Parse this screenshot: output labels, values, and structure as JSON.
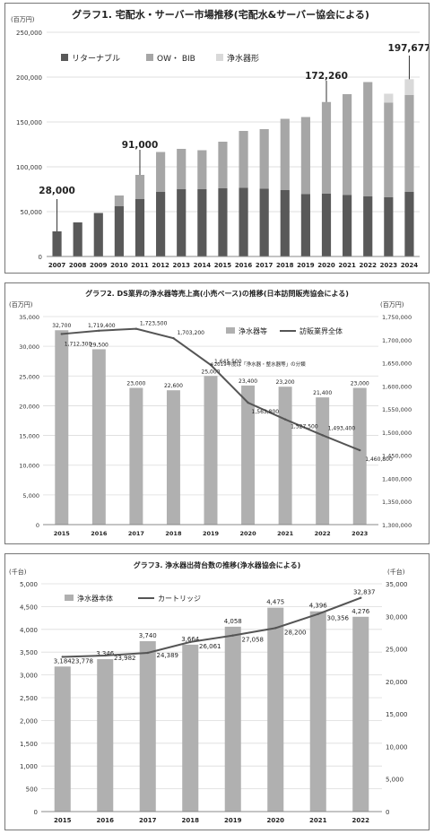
{
  "chart_data": [
    {
      "type": "bar",
      "title": "グラフ1. 宅配水・サーバー市場推移(宅配水&サーバー協会による)",
      "ylabel_unit": "(百万円)",
      "categories": [
        "2007",
        "2008",
        "2009",
        "2010",
        "2011",
        "2012",
        "2013",
        "2014",
        "2015",
        "2016",
        "2017",
        "2018",
        "2019",
        "2020",
        "2021",
        "2022",
        "2023",
        "2024"
      ],
      "ylim": [
        0,
        250000
      ],
      "yticks": [
        "0",
        "50,000",
        "100,000",
        "150,000",
        "200,000",
        "250,000"
      ],
      "stacked": true,
      "series": [
        {
          "name": "リターナブル",
          "color": "#595959",
          "values": [
            28000,
            38000,
            48500,
            56000,
            64000,
            72000,
            75000,
            75000,
            76000,
            76500,
            75500,
            74000,
            69500,
            70000,
            68500,
            67000,
            66000,
            72000
          ]
        },
        {
          "name": "OW・ BIB",
          "color": "#a6a6a6",
          "values": [
            0,
            0,
            0,
            12000,
            27000,
            44500,
            45000,
            43500,
            52000,
            63500,
            66500,
            79500,
            86000,
            102260,
            112500,
            127500,
            105500,
            108000
          ]
        },
        {
          "name": "浄水器形",
          "color": "#d9d9d9",
          "values": [
            0,
            0,
            0,
            0,
            0,
            0,
            0,
            0,
            0,
            0,
            0,
            0,
            0,
            0,
            0,
            0,
            10000,
            17677
          ]
        }
      ],
      "annotations": [
        {
          "category": "2007",
          "label": "28,000"
        },
        {
          "category": "2011",
          "label": "91,000"
        },
        {
          "category": "2020",
          "label": "172,260"
        },
        {
          "category": "2024",
          "label": "197,677"
        }
      ],
      "legend": "top-left"
    },
    {
      "type": "bar+line",
      "title": "グラフ2. DS業界の浄水器等売上高(小売ベース)の推移(日本訪問販売協会による)",
      "ylabel_left_unit": "(百万円)",
      "ylabel_right_unit": "(百万円)",
      "categories": [
        "2015",
        "2016",
        "2017",
        "2018",
        "2019",
        "2020",
        "2021",
        "2022",
        "2023"
      ],
      "ylim_left": [
        0,
        35000
      ],
      "yticks_left": [
        "0",
        "5,000",
        "10,000",
        "15,000",
        "20,000",
        "25,000",
        "30,000",
        "35,000"
      ],
      "ylim_right": [
        1300000,
        1750000
      ],
      "yticks_right": [
        "1,300,000",
        "1,350,000",
        "1,400,000",
        "1,450,000",
        "1,500,000",
        "1,550,000",
        "1,600,000",
        "1,650,000",
        "1,700,000",
        "1,750,000"
      ],
      "series": [
        {
          "name": "浄水器等",
          "axis": "left",
          "kind": "bar",
          "color": "#b0b0b0",
          "values": [
            32700,
            29500,
            23000,
            22600,
            25000,
            23400,
            23200,
            21400,
            23000
          ],
          "labels": [
            "32,700",
            "29,500",
            "23,000",
            "22,600",
            "25,000",
            "23,400",
            "23,200",
            "21,400",
            "23,000"
          ]
        },
        {
          "name": "訪販業界全体",
          "axis": "right",
          "kind": "line",
          "color": "#555555",
          "values": [
            1712300,
            1719400,
            1723500,
            1703200,
            1645500,
            1563800,
            1527500,
            1493400,
            1460800
          ],
          "labels": [
            "1,712,300",
            "1,719,400",
            "1,723,500",
            "1,703,200",
            "1,645,500",
            "1,563,800",
            "1,527,500",
            "1,493,400",
            "1,460,800"
          ]
        }
      ],
      "note": "※2019年度は「浄水器・整水器等」の分類",
      "legend": "top-right"
    },
    {
      "type": "bar+line",
      "title": "グラフ3. 浄水器出荷台数の推移(浄水器協会による)",
      "ylabel_left_unit": "(千台)",
      "ylabel_right_unit": "(千台)",
      "categories": [
        "2015",
        "2016",
        "2017",
        "2018",
        "2019",
        "2020",
        "2021",
        "2022"
      ],
      "ylim_left": [
        0,
        5000
      ],
      "yticks_left": [
        "0",
        "500",
        "1,000",
        "1,500",
        "2,000",
        "2,500",
        "3,000",
        "3,500",
        "4,000",
        "4,500",
        "5,000"
      ],
      "ylim_right": [
        0,
        35000
      ],
      "yticks_right": [
        "0",
        "5,000",
        "10,000",
        "15,000",
        "20,000",
        "25,000",
        "30,000",
        "35,000"
      ],
      "series": [
        {
          "name": "浄水器本体",
          "axis": "left",
          "kind": "bar",
          "color": "#b0b0b0",
          "values": [
            3184,
            3346,
            3740,
            3664,
            4058,
            4475,
            4396,
            4276
          ],
          "labels": [
            "3,184",
            "3,346",
            "3,740",
            "3,664",
            "4,058",
            "4,475",
            "4,396",
            "4,276"
          ]
        },
        {
          "name": "カートリッジ",
          "axis": "right",
          "kind": "line",
          "color": "#555555",
          "values": [
            23778,
            23982,
            24389,
            26061,
            27058,
            28200,
            30356,
            32837
          ],
          "labels": [
            "23,778",
            "23,982",
            "24,389",
            "26,061",
            "27,058",
            "28,200",
            "30,356",
            "32,837"
          ]
        }
      ],
      "legend": "top-left"
    }
  ]
}
